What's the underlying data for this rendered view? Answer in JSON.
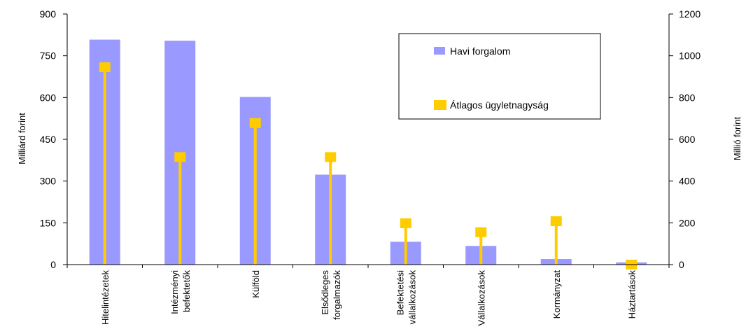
{
  "chart_data": {
    "type": "bar",
    "categories": [
      [
        "Hitelintézetek"
      ],
      [
        "Intézményi",
        "befektetők"
      ],
      [
        "Külföld"
      ],
      [
        "Elsődleges",
        "forgalmazók"
      ],
      [
        "Befektetési",
        "vállalkozások"
      ],
      [
        "Vállalkozások"
      ],
      [
        "Kormányzat"
      ],
      [
        "Háztartások"
      ]
    ],
    "series": [
      {
        "name": "Havi forgalom",
        "type": "bar",
        "axis": "left",
        "color": "#9999ff",
        "values": [
          808,
          804,
          602,
          323,
          82,
          67,
          20,
          8
        ]
      },
      {
        "name": "Átlagos ügyletnagyság",
        "type": "lollipop",
        "axis": "right",
        "color": "#ffcc00",
        "values": [
          945,
          515,
          678,
          515,
          198,
          155,
          208,
          0
        ]
      }
    ],
    "left_axis": {
      "label": "Milliárd forint",
      "min": 0,
      "max": 900,
      "ticks": [
        "0",
        "150",
        "300",
        "450",
        "600",
        "750",
        "900"
      ]
    },
    "right_axis": {
      "label": "Millió forint",
      "min": 0,
      "max": 1200,
      "ticks": [
        "0",
        "200",
        "400",
        "600",
        "800",
        "1000",
        "1200"
      ]
    },
    "legend_position": "top-right",
    "legend": [
      {
        "label": "Havi forgalom",
        "color": "#9999ff"
      },
      {
        "label": "Átlagos ügyletnagyság",
        "color": "#ffcc00"
      }
    ],
    "grid": false
  }
}
